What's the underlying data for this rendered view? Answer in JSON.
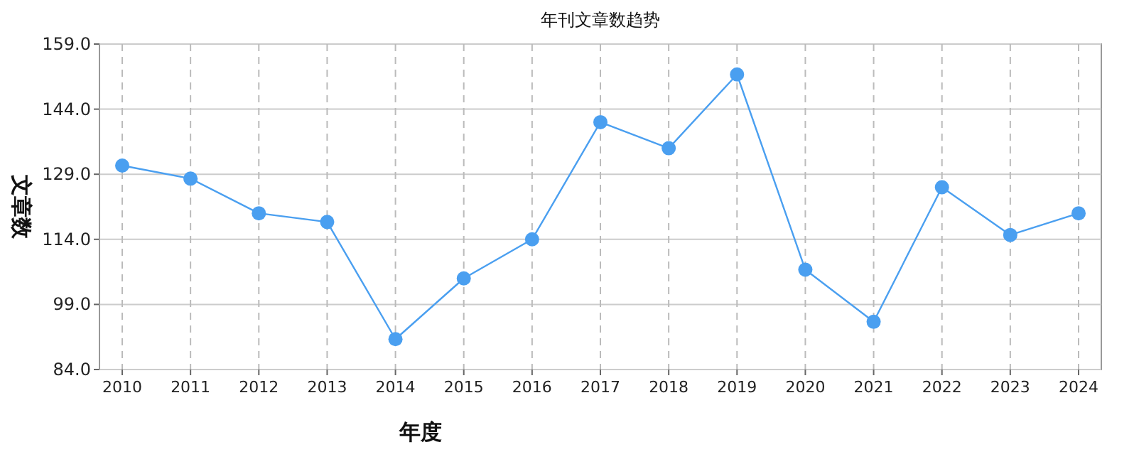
{
  "chart_data": {
    "type": "line",
    "title": "年刊文章数趋势",
    "xlabel": "年度",
    "ylabel": "文章数",
    "categories": [
      "2010",
      "2011",
      "2012",
      "2013",
      "2014",
      "2015",
      "2016",
      "2017",
      "2018",
      "2019",
      "2020",
      "2021",
      "2022",
      "2023",
      "2024"
    ],
    "series": [
      {
        "color": "#4a9ff0",
        "values": [
          131,
          128,
          120,
          118,
          91,
          105,
          114,
          141,
          135,
          152,
          107,
          95,
          126,
          115,
          120
        ]
      }
    ],
    "ylim": [
      84,
      159
    ],
    "yticks": [
      {
        "value": 84,
        "label": "84.0"
      },
      {
        "value": 99,
        "label": "99.0"
      },
      {
        "value": 114,
        "label": "114.0"
      },
      {
        "value": 129,
        "label": "129.0"
      },
      {
        "value": 144,
        "label": "144.0"
      },
      {
        "value": 159,
        "label": "159.0"
      }
    ],
    "grid": true,
    "marker": "circle"
  }
}
